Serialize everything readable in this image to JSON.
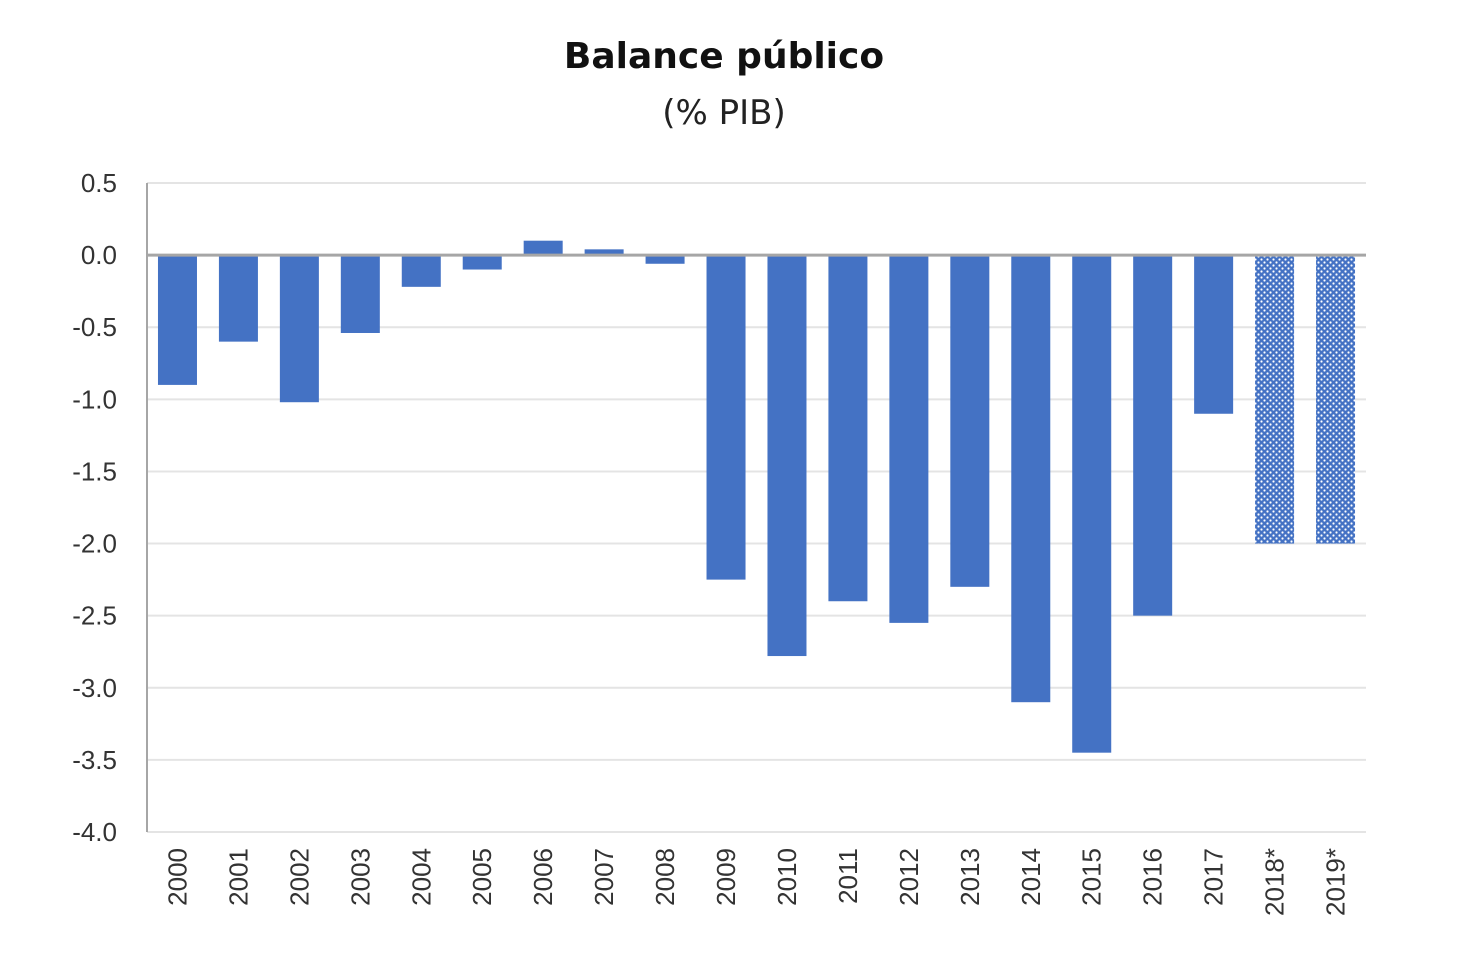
{
  "chart_data": {
    "type": "bar",
    "title": "Balance público",
    "subtitle": "(% PIB)",
    "xlabel": "",
    "ylabel": "",
    "ylim": [
      -4.0,
      0.5
    ],
    "yticks": [
      "0.5",
      "0.0",
      "-0.5",
      "-1.0",
      "-1.5",
      "-2.0",
      "-2.5",
      "-3.0",
      "-3.5",
      "-4.0"
    ],
    "grid": true,
    "legend": "none",
    "categories": [
      "2000",
      "2001",
      "2002",
      "2003",
      "2004",
      "2005",
      "2006",
      "2007",
      "2008",
      "2009",
      "2010",
      "2011",
      "2012",
      "2013",
      "2014",
      "2015",
      "2016",
      "2017",
      "2018*",
      "2019*"
    ],
    "values": [
      -0.9,
      -0.6,
      -1.02,
      -0.54,
      -0.22,
      -0.1,
      0.1,
      0.04,
      -0.06,
      -2.25,
      -2.78,
      -2.4,
      -2.55,
      -2.3,
      -3.1,
      -3.45,
      -2.5,
      -1.1,
      -2.0,
      -2.0
    ],
    "pattern": [
      "solid",
      "solid",
      "solid",
      "solid",
      "solid",
      "solid",
      "solid",
      "solid",
      "solid",
      "solid",
      "solid",
      "solid",
      "solid",
      "solid",
      "solid",
      "solid",
      "solid",
      "solid",
      "dotted",
      "dotted"
    ],
    "colors": {
      "bar": "#4472c4",
      "grid": "#e4e4e4",
      "axis": "#a6a6a6"
    }
  }
}
